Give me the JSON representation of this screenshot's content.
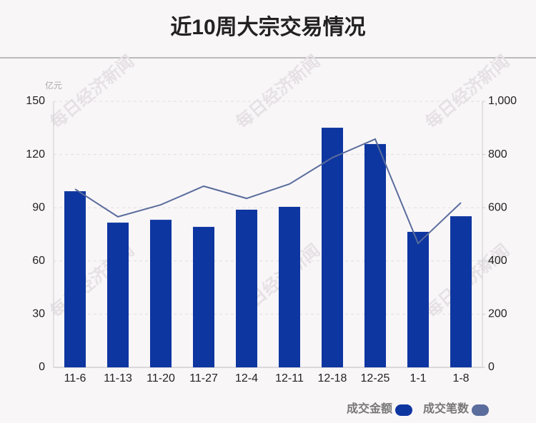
{
  "chart_data": {
    "type": "bar-line",
    "title": "近10周大宗交易情况",
    "y_unit": "亿元",
    "watermark": "每日经济新闻",
    "categories": [
      "11-6",
      "11-13",
      "11-20",
      "11-27",
      "12-4",
      "12-11",
      "12-18",
      "12-25",
      "1-1",
      "1-8"
    ],
    "series": [
      {
        "name": "成交金额",
        "type": "bar",
        "color": "#0e36a0",
        "values": [
          99.3,
          81.6,
          83.2,
          79.2,
          88.9,
          90.5,
          135.1,
          125.9,
          76.4,
          85.2
        ]
      },
      {
        "name": "成交笔数",
        "type": "line",
        "axis": "y2",
        "color": "#5a6d9c",
        "values": [
          670,
          566,
          611,
          681,
          635,
          689,
          788,
          858,
          466,
          619
        ]
      }
    ],
    "ylim": [
      0,
      150
    ],
    "yticks": [
      0,
      30,
      60,
      90,
      120,
      150
    ],
    "y2lim": [
      0,
      1000
    ],
    "y2ticks": [
      0,
      200,
      400,
      600,
      800,
      {
        "value": 1000,
        "label": "1,000"
      }
    ],
    "grid": true
  }
}
